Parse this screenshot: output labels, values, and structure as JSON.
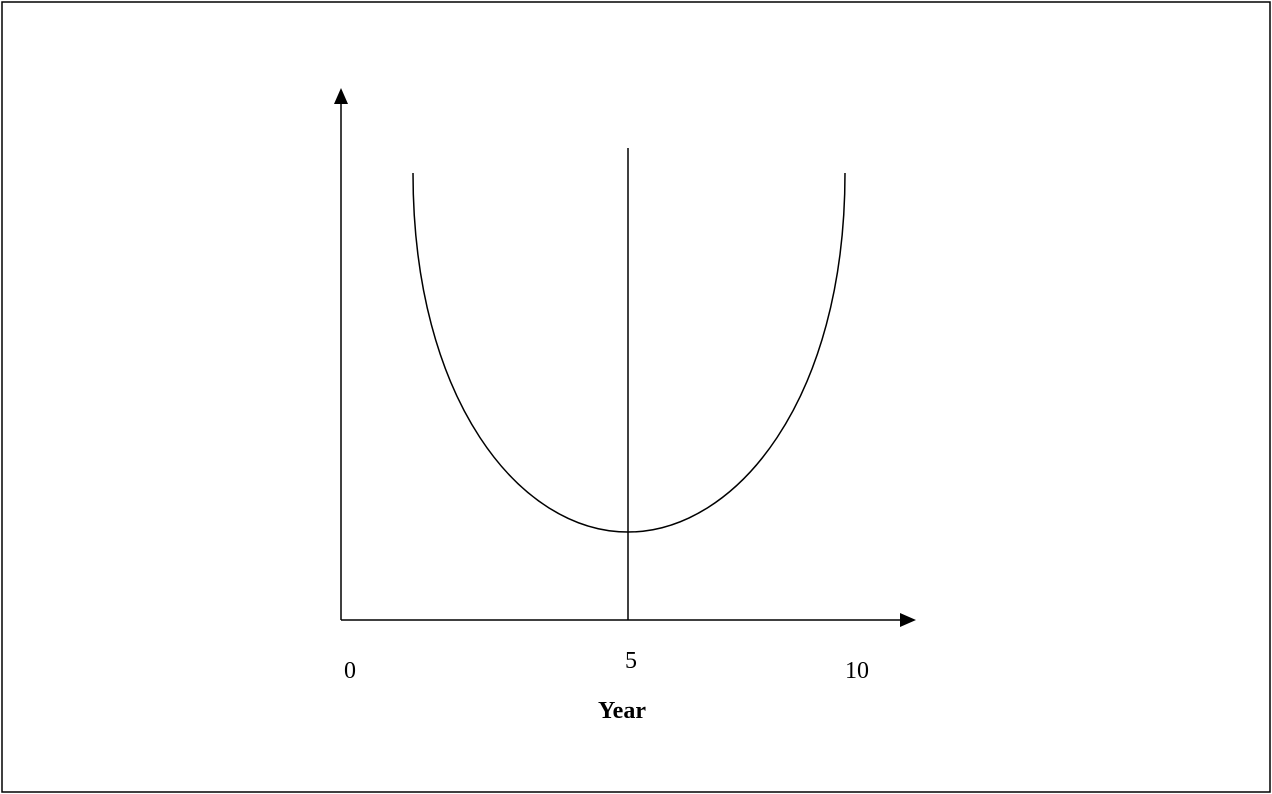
{
  "axis": {
    "tick_labels": [
      "0",
      "5",
      "10"
    ],
    "label": "Year"
  }
}
